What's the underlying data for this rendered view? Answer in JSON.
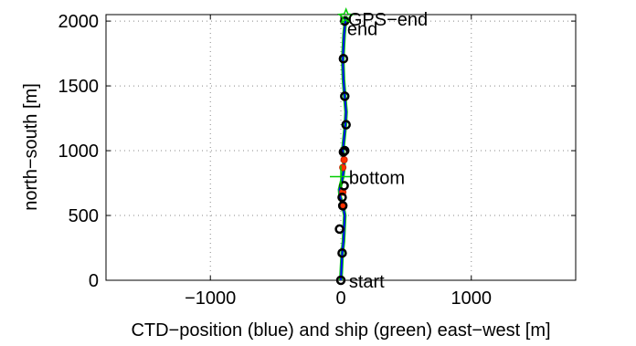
{
  "chart_data": {
    "type": "line",
    "title": "",
    "xlabel": "CTD−position (blue) and ship (green) east−west [m]",
    "ylabel": "north−south [m]",
    "xlim": [
      -1800,
      1800
    ],
    "ylim": [
      0,
      2050
    ],
    "xticks": [
      -1000,
      0,
      1000
    ],
    "xtick_labels": [
      "−1000",
      "0",
      "1000"
    ],
    "yticks": [
      0,
      500,
      1000,
      1500,
      2000
    ],
    "ytick_labels": [
      "0",
      "500",
      "1000",
      "1500",
      "2000"
    ],
    "grid": true,
    "series": [
      {
        "x": [
          0,
          5,
          10,
          20,
          25,
          30,
          15,
          -5,
          -10,
          5,
          15,
          25,
          20,
          15,
          25,
          35,
          40,
          30,
          20,
          15,
          20,
          25,
          30,
          35,
          35
        ],
        "y": [
          0,
          100,
          200,
          300,
          400,
          500,
          580,
          640,
          700,
          760,
          800,
          880,
          950,
          1000,
          1100,
          1200,
          1300,
          1420,
          1550,
          1700,
          1800,
          1900,
          1950,
          2000,
          2030
        ]
      },
      {
        "x": [
          0,
          5,
          10,
          20,
          25,
          30,
          15,
          -5,
          -10,
          5,
          15,
          25,
          20,
          15,
          25,
          35,
          40,
          30,
          20,
          15,
          20,
          25,
          30,
          35,
          38
        ],
        "y": [
          0,
          100,
          200,
          300,
          400,
          500,
          580,
          640,
          700,
          760,
          800,
          880,
          950,
          1000,
          1100,
          1200,
          1300,
          1420,
          1550,
          1700,
          1800,
          1900,
          1950,
          2000,
          2040
        ]
      }
    ],
    "black_markers": {
      "x": [
        0,
        10,
        -10,
        15,
        10,
        25,
        20,
        30,
        40,
        30,
        20,
        30
      ],
      "y": [
        0,
        210,
        395,
        575,
        640,
        730,
        990,
        1000,
        1200,
        1420,
        1710,
        2000
      ]
    },
    "red_markers": {
      "x": [
        20,
        15,
        25,
        15
      ],
      "y": [
        580,
        680,
        930,
        870
      ]
    },
    "annotations": [
      {
        "text": "start",
        "x": 20,
        "y": 0
      },
      {
        "text": "bottom",
        "x": 20,
        "y": 800
      },
      {
        "text": "end",
        "x": 20,
        "y": 1990
      },
      {
        "text": "GPS−end",
        "x": 55,
        "y": 2030
      }
    ],
    "bottom_marker": {
      "x": 0,
      "y": 800
    },
    "gps_end_marker": {
      "x": 40,
      "y": 2035
    }
  }
}
